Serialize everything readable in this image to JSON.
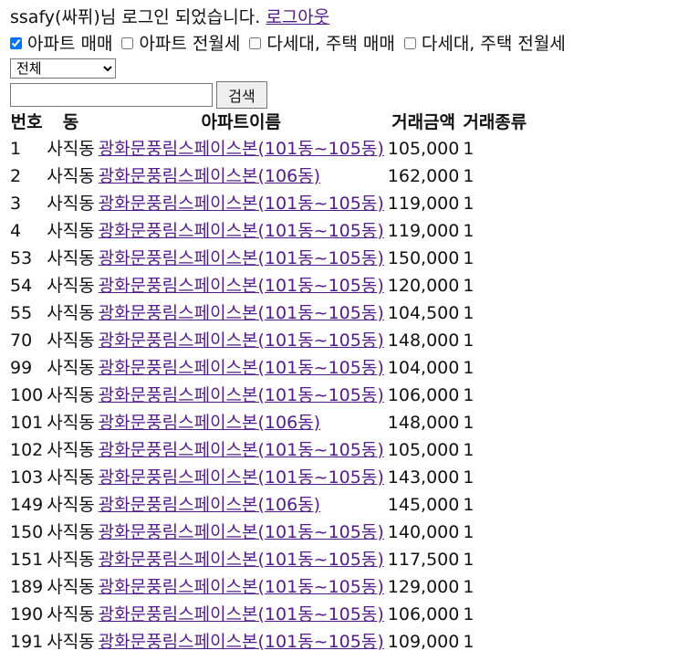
{
  "login": {
    "message": "ssafy(싸퓌)님 로그인 되었습니다. ",
    "logout_label": "로그아웃"
  },
  "filters": [
    {
      "label": "아파트 매매",
      "checked": true
    },
    {
      "label": "아파트 전월세",
      "checked": false
    },
    {
      "label": "다세대, 주택 매매",
      "checked": false
    },
    {
      "label": "다세대, 주택 전월세",
      "checked": false
    }
  ],
  "select": {
    "selected": "전체"
  },
  "search": {
    "value": "",
    "button_label": "검색"
  },
  "table": {
    "headers": [
      "번호",
      "동",
      "아파트이름",
      "거래금액",
      "거래종류"
    ],
    "rows": [
      [
        "1",
        "사직동",
        "광화문풍림스페이스본(101동~105동)",
        "105,000",
        "1"
      ],
      [
        "2",
        "사직동",
        "광화문풍림스페이스본(106동)",
        "162,000",
        "1"
      ],
      [
        "3",
        "사직동",
        "광화문풍림스페이스본(101동~105동)",
        "119,000",
        "1"
      ],
      [
        "4",
        "사직동",
        "광화문풍림스페이스본(101동~105동)",
        "119,000",
        "1"
      ],
      [
        "53",
        "사직동",
        "광화문풍림스페이스본(101동~105동)",
        "150,000",
        "1"
      ],
      [
        "54",
        "사직동",
        "광화문풍림스페이스본(101동~105동)",
        "120,000",
        "1"
      ],
      [
        "55",
        "사직동",
        "광화문풍림스페이스본(101동~105동)",
        "104,500",
        "1"
      ],
      [
        "70",
        "사직동",
        "광화문풍림스페이스본(101동~105동)",
        "148,000",
        "1"
      ],
      [
        "99",
        "사직동",
        "광화문풍림스페이스본(101동~105동)",
        "104,000",
        "1"
      ],
      [
        "100",
        "사직동",
        "광화문풍림스페이스본(101동~105동)",
        "106,000",
        "1"
      ],
      [
        "101",
        "사직동",
        "광화문풍림스페이스본(106동)",
        "148,000",
        "1"
      ],
      [
        "102",
        "사직동",
        "광화문풍림스페이스본(101동~105동)",
        "105,000",
        "1"
      ],
      [
        "103",
        "사직동",
        "광화문풍림스페이스본(101동~105동)",
        "143,000",
        "1"
      ],
      [
        "149",
        "사직동",
        "광화문풍림스페이스본(106동)",
        "145,000",
        "1"
      ],
      [
        "150",
        "사직동",
        "광화문풍림스페이스본(101동~105동)",
        "140,000",
        "1"
      ],
      [
        "151",
        "사직동",
        "광화문풍림스페이스본(101동~105동)",
        "117,500",
        "1"
      ],
      [
        "189",
        "사직동",
        "광화문풍림스페이스본(101동~105동)",
        "129,000",
        "1"
      ],
      [
        "190",
        "사직동",
        "광화문풍림스페이스본(101동~105동)",
        "106,000",
        "1"
      ],
      [
        "191",
        "사직동",
        "광화문풍림스페이스본(101동~105동)",
        "109,000",
        "1"
      ]
    ]
  }
}
